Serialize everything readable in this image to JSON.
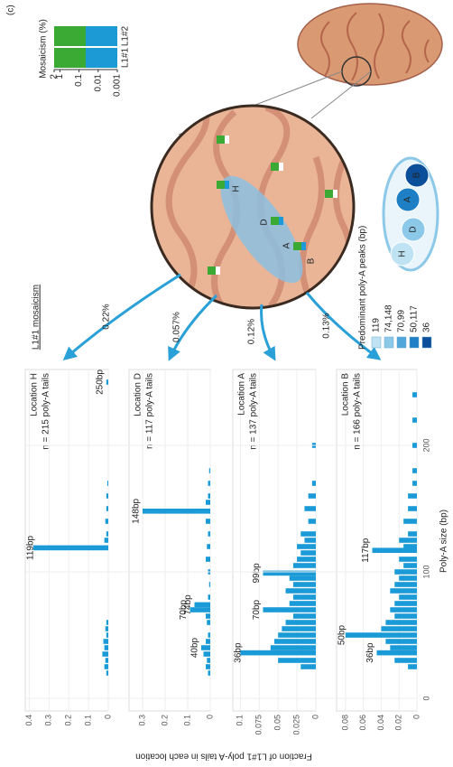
{
  "panel_label": "(c)",
  "y_axis_label": "Fraction of L1#1 poly-A tails in each location",
  "x_axis_label": "Poly-A size (bp)",
  "chart_data": [
    {
      "type": "bar",
      "title": "Location H",
      "subtitle": "n = 215 poly-A tails",
      "color": "#1a9bd7",
      "x": [
        20,
        25,
        30,
        35,
        40,
        45,
        50,
        55,
        60,
        119,
        125,
        130,
        140,
        150,
        160,
        170,
        250
      ],
      "values": [
        0.01,
        0.02,
        0.015,
        0.03,
        0.02,
        0.025,
        0.01,
        0.015,
        0.01,
        0.38,
        0.02,
        0.01,
        0.015,
        0.01,
        0.01,
        0.005,
        0.01
      ],
      "xlim": [
        -10,
        260
      ],
      "ylim": [
        0,
        0.42
      ],
      "yticks": [
        0,
        0.1,
        0.2,
        0.3,
        0.4
      ],
      "grid": true,
      "annotations": [
        {
          "label": "119bp",
          "x": 119
        },
        {
          "label": "250bp",
          "x": 250
        }
      ]
    },
    {
      "type": "bar",
      "title": "Location D",
      "subtitle": "n = 117 poly-A tails",
      "color": "#1a9bd7",
      "x": [
        20,
        25,
        30,
        35,
        40,
        45,
        50,
        60,
        65,
        70,
        74,
        80,
        90,
        100,
        110,
        120,
        130,
        140,
        148,
        155,
        160,
        170,
        180
      ],
      "values": [
        0.01,
        0.02,
        0.015,
        0.03,
        0.04,
        0.02,
        0.01,
        0.015,
        0.02,
        0.09,
        0.07,
        0.01,
        0.005,
        0.01,
        0.02,
        0.015,
        0.01,
        0.02,
        0.3,
        0.02,
        0.01,
        0.01,
        0.005
      ],
      "xlim": [
        -10,
        260
      ],
      "ylim": [
        0,
        0.36
      ],
      "yticks": [
        0,
        0.1,
        0.2,
        0.3
      ],
      "grid": true,
      "annotations": [
        {
          "label": "40bp",
          "x": 40
        },
        {
          "label": "70bp",
          "x": 70
        },
        {
          "label": "74bp",
          "x": 74
        },
        {
          "label": "148bp",
          "x": 148
        }
      ]
    },
    {
      "type": "bar",
      "title": "Location A",
      "subtitle": "n = 137 poly-A tails",
      "color": "#1a9bd7",
      "x": [
        25,
        30,
        36,
        40,
        45,
        50,
        55,
        60,
        65,
        70,
        75,
        80,
        85,
        90,
        95,
        99,
        105,
        110,
        115,
        120,
        125,
        130,
        140,
        150,
        160,
        170,
        200
      ],
      "values": [
        0.02,
        0.05,
        0.1,
        0.06,
        0.055,
        0.05,
        0.045,
        0.04,
        0.03,
        0.07,
        0.035,
        0.03,
        0.04,
        0.03,
        0.035,
        0.07,
        0.03,
        0.025,
        0.02,
        0.025,
        0.015,
        0.02,
        0.01,
        0.015,
        0.01,
        0.005,
        0.005
      ],
      "xlim": [
        -10,
        260
      ],
      "ylim": [
        0,
        0.11
      ],
      "yticks": [
        0,
        0.025,
        0.05,
        0.075,
        0.1
      ],
      "grid": true,
      "annotations": [
        {
          "label": "36bp",
          "x": 36
        },
        {
          "label": "70bp",
          "x": 70
        },
        {
          "label": "99bp",
          "x": 99
        }
      ]
    },
    {
      "type": "bar",
      "title": "Location B",
      "subtitle": "n = 166 poly-A tails",
      "color": "#1a9bd7",
      "x": [
        25,
        30,
        36,
        40,
        45,
        50,
        55,
        60,
        65,
        70,
        75,
        80,
        85,
        90,
        95,
        100,
        105,
        110,
        117,
        120,
        125,
        130,
        140,
        150,
        160,
        170,
        180,
        200,
        220,
        240
      ],
      "values": [
        0.01,
        0.025,
        0.045,
        0.03,
        0.035,
        0.08,
        0.04,
        0.035,
        0.025,
        0.03,
        0.025,
        0.02,
        0.03,
        0.025,
        0.02,
        0.025,
        0.015,
        0.02,
        0.05,
        0.015,
        0.02,
        0.01,
        0.015,
        0.01,
        0.01,
        0.005,
        0.005,
        0.005,
        0.005,
        0.005
      ],
      "xlim": [
        -10,
        260
      ],
      "ylim": [
        0,
        0.09
      ],
      "yticks": [
        0,
        0.02,
        0.04,
        0.06,
        0.08
      ],
      "xticks": [
        0,
        100,
        200
      ],
      "grid": true,
      "annotations": [
        {
          "label": "36bp",
          "x": 36
        },
        {
          "label": "50bp",
          "x": 50
        },
        {
          "label": "117bp",
          "x": 117
        }
      ]
    }
  ],
  "mosaicism": {
    "title": "Mosaicism (%)",
    "ticks": [
      0.001,
      0.01,
      0.1,
      1,
      2
    ],
    "columns": [
      "L1#1",
      "L1#2"
    ],
    "colors": [
      "#3aaa35",
      "#1b9ad6"
    ]
  },
  "arrows": {
    "title": "L1#1 mosaicism",
    "labels": [
      "0.22%",
      "0.057%",
      "0.12%",
      "0.13%"
    ],
    "color": "#2aa0d8"
  },
  "zoom_labels": [
    "A",
    "B",
    "D",
    "H"
  ],
  "peaks_legend": {
    "title": "Predominant poly-A peaks (bp)",
    "items": [
      {
        "label": "119",
        "color": "#bfe3f2"
      },
      {
        "label": "74,148",
        "color": "#8cc8e8"
      },
      {
        "label": "70,99",
        "color": "#4ea7d8"
      },
      {
        "label": "50,117",
        "color": "#1f7fc4"
      },
      {
        "label": "36",
        "color": "#0b4e9a"
      }
    ],
    "blob_labels": [
      "H",
      "D",
      "A",
      "B"
    ]
  }
}
